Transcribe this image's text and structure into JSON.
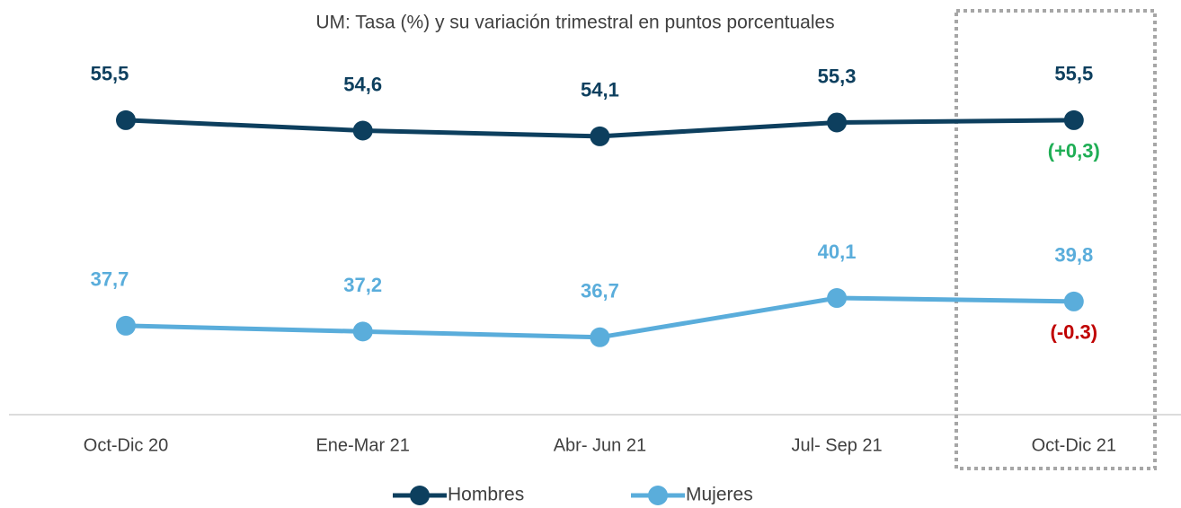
{
  "chart_data": {
    "type": "line",
    "subtitle": "UM: Tasa (%) y su variación trimestral en puntos porcentuales",
    "categories": [
      "Oct-Dic 20",
      "Ene-Mar 21",
      "Abr- Jun 21",
      "Jul- Sep 21",
      "Oct-Dic 21"
    ],
    "series": [
      {
        "name": "Hombres",
        "color": "#0d3f5e",
        "values": [
          55.5,
          54.6,
          54.1,
          55.3,
          55.5
        ],
        "value_labels": [
          "55,5",
          "54,6",
          "54,1",
          "55,3",
          "55,5"
        ]
      },
      {
        "name": "Mujeres",
        "color": "#5aaddb",
        "values": [
          37.7,
          37.2,
          36.7,
          40.1,
          39.8
        ],
        "value_labels": [
          "37,7",
          "37,2",
          "36,7",
          "40,1",
          "39,8"
        ]
      }
    ],
    "annotations": [
      {
        "text": "(+0,3)",
        "color": "#1fae55"
      },
      {
        "text": "(-0.3)",
        "color": "#c00000"
      }
    ],
    "ylim": [
      30,
      60
    ],
    "legend": "bottom"
  }
}
